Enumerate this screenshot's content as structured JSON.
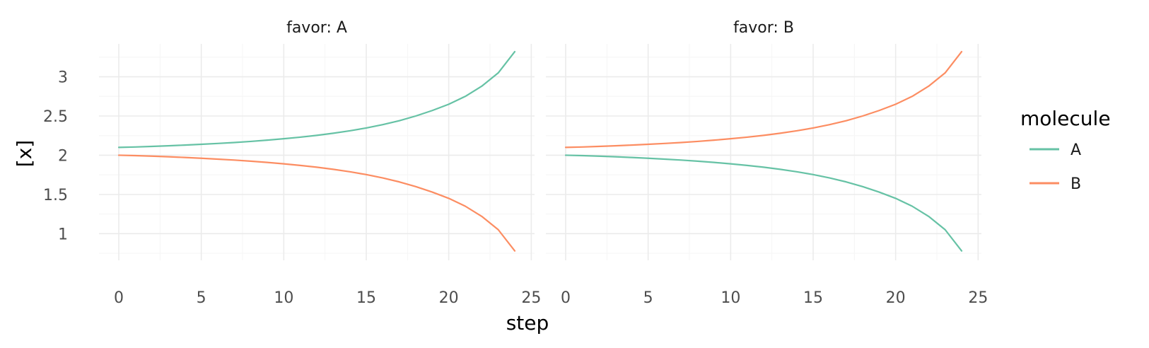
{
  "chart_data": {
    "type": "line",
    "xlabel": "step",
    "ylabel": "[x]",
    "xlim": [
      -1.2,
      25.2
    ],
    "ylim": [
      0.66,
      3.42
    ],
    "x_ticks": [
      0,
      5,
      10,
      15,
      20,
      25
    ],
    "x_tick_labels": [
      "0",
      "5",
      "10",
      "15",
      "20",
      "25"
    ],
    "y_ticks": [
      1,
      1.5,
      2,
      2.5,
      3
    ],
    "y_tick_labels": [
      "1",
      "1.5",
      "2",
      "2.5",
      "3"
    ],
    "grid": true,
    "legend": {
      "title": "molecule",
      "position": "right",
      "entries": [
        {
          "name": "A",
          "color": "#66c2a5"
        },
        {
          "name": "B",
          "color": "#fc8d62"
        }
      ]
    },
    "facets": [
      {
        "strip": "favor: A",
        "series": [
          {
            "name": "A",
            "color": "#66c2a5",
            "x": [
              0,
              1,
              2,
              3,
              4,
              5,
              6,
              7,
              8,
              9,
              10,
              11,
              12,
              13,
              14,
              15,
              16,
              17,
              18,
              19,
              20,
              21,
              22,
              23,
              24
            ],
            "y": [
              2.1,
              2.105,
              2.112,
              2.12,
              2.129,
              2.139,
              2.15,
              2.162,
              2.176,
              2.192,
              2.21,
              2.23,
              2.253,
              2.28,
              2.311,
              2.347,
              2.39,
              2.44,
              2.5,
              2.57,
              2.65,
              2.75,
              2.88,
              3.05,
              3.32
            ]
          },
          {
            "name": "B",
            "color": "#fc8d62",
            "x": [
              0,
              1,
              2,
              3,
              4,
              5,
              6,
              7,
              8,
              9,
              10,
              11,
              12,
              13,
              14,
              15,
              16,
              17,
              18,
              19,
              20,
              21,
              22,
              23,
              24
            ],
            "y": [
              2.0,
              1.995,
              1.988,
              1.98,
              1.971,
              1.961,
              1.95,
              1.938,
              1.924,
              1.908,
              1.89,
              1.87,
              1.847,
              1.82,
              1.789,
              1.753,
              1.71,
              1.66,
              1.6,
              1.53,
              1.45,
              1.35,
              1.22,
              1.05,
              0.78
            ]
          }
        ]
      },
      {
        "strip": "favor: B",
        "series": [
          {
            "name": "A",
            "color": "#66c2a5",
            "x": [
              0,
              1,
              2,
              3,
              4,
              5,
              6,
              7,
              8,
              9,
              10,
              11,
              12,
              13,
              14,
              15,
              16,
              17,
              18,
              19,
              20,
              21,
              22,
              23,
              24
            ],
            "y": [
              2.0,
              1.995,
              1.988,
              1.98,
              1.971,
              1.961,
              1.95,
              1.938,
              1.924,
              1.908,
              1.89,
              1.87,
              1.847,
              1.82,
              1.789,
              1.753,
              1.71,
              1.66,
              1.6,
              1.53,
              1.45,
              1.35,
              1.22,
              1.05,
              0.78
            ]
          },
          {
            "name": "B",
            "color": "#fc8d62",
            "x": [
              0,
              1,
              2,
              3,
              4,
              5,
              6,
              7,
              8,
              9,
              10,
              11,
              12,
              13,
              14,
              15,
              16,
              17,
              18,
              19,
              20,
              21,
              22,
              23,
              24
            ],
            "y": [
              2.1,
              2.105,
              2.112,
              2.12,
              2.129,
              2.139,
              2.15,
              2.162,
              2.176,
              2.192,
              2.21,
              2.23,
              2.253,
              2.28,
              2.311,
              2.347,
              2.39,
              2.44,
              2.5,
              2.57,
              2.65,
              2.75,
              2.88,
              3.05,
              3.32
            ]
          }
        ]
      }
    ]
  }
}
